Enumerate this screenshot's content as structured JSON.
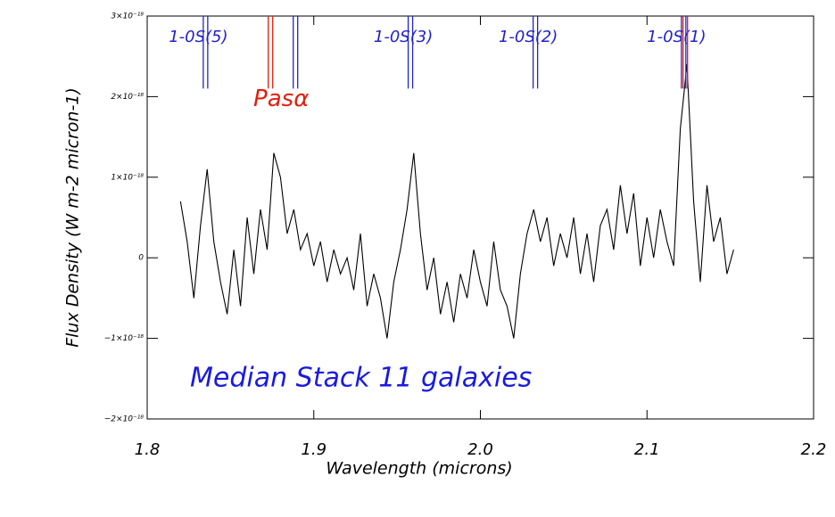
{
  "chart_data": {
    "type": "line",
    "x_label": "Wavelength (microns)",
    "y_label": "Flux Density (W m-2 micron-1)",
    "annotation": "Median Stack 11 galaxies",
    "xlim": [
      1.8,
      2.2
    ],
    "xticks": [
      1.8,
      1.9,
      {
        "value": 2.0,
        "label": "2.0"
      },
      2.1,
      2.2
    ],
    "ylim": [
      -2e-18,
      3e-18
    ],
    "yticks": [
      {
        "value": -2e-18,
        "label": "−2×10⁻¹⁸"
      },
      {
        "value": -1e-18,
        "label": "−1×10⁻¹⁸"
      },
      0,
      {
        "value": 1e-18,
        "label": "1×10⁻¹⁸"
      },
      {
        "value": 2e-18,
        "label": "2×10⁻¹⁸"
      },
      {
        "value": 3e-18,
        "label": "3×10⁻¹⁸"
      }
    ],
    "x": [
      1.82,
      1.824,
      1.828,
      1.832,
      1.836,
      1.84,
      1.844,
      1.848,
      1.852,
      1.856,
      1.86,
      1.864,
      1.868,
      1.872,
      1.876,
      1.88,
      1.884,
      1.888,
      1.892,
      1.896,
      1.9,
      1.904,
      1.908,
      1.912,
      1.916,
      1.92,
      1.924,
      1.928,
      1.932,
      1.936,
      1.94,
      1.944,
      1.948,
      1.952,
      1.956,
      1.96,
      1.964,
      1.968,
      1.972,
      1.976,
      1.98,
      1.984,
      1.988,
      1.992,
      1.996,
      2.0,
      2.004,
      2.008,
      2.012,
      2.016,
      2.02,
      2.024,
      2.028,
      2.032,
      2.036,
      2.04,
      2.044,
      2.048,
      2.052,
      2.056,
      2.06,
      2.064,
      2.068,
      2.072,
      2.076,
      2.08,
      2.084,
      2.088,
      2.092,
      2.096,
      2.1,
      2.104,
      2.108,
      2.112,
      2.116,
      2.12,
      2.124,
      2.128,
      2.132,
      2.136,
      2.14,
      2.144,
      2.148,
      2.152
    ],
    "series": [
      {
        "color": "#000000",
        "values": [
          7e-19,
          2e-19,
          -5e-19,
          4e-19,
          1.1e-18,
          2e-19,
          -3e-19,
          -7e-19,
          1e-19,
          -6e-19,
          5e-19,
          -2e-19,
          6e-19,
          1e-19,
          1.3e-18,
          1e-18,
          3e-19,
          6e-19,
          1e-19,
          3e-19,
          -1e-19,
          2e-19,
          -3e-19,
          1e-19,
          -2e-19,
          0,
          -4e-19,
          3e-19,
          -6e-19,
          -2e-19,
          -5e-19,
          -1e-18,
          -3e-19,
          1e-19,
          6e-19,
          1.3e-18,
          3e-19,
          -4e-19,
          0,
          -7e-19,
          -3e-19,
          -8e-19,
          -2e-19,
          -5e-19,
          1e-19,
          -3e-19,
          -6e-19,
          2e-19,
          -4e-19,
          -6e-19,
          -1e-18,
          -2e-19,
          3e-19,
          6e-19,
          2e-19,
          5e-19,
          -1e-19,
          3e-19,
          0,
          5e-19,
          -2e-19,
          3e-19,
          -3e-19,
          4e-19,
          6e-19,
          1e-19,
          9e-19,
          3e-19,
          8e-19,
          -1e-19,
          5e-19,
          0,
          6e-19,
          2e-19,
          -1e-19,
          1.6e-18,
          2.4e-18,
          7e-19,
          -3e-19,
          9e-19,
          2e-19,
          5e-19,
          -2e-19,
          1e-19
        ]
      }
    ],
    "line_bottom": 2.1e-18,
    "lines": [
      {
        "x": 1.835,
        "color": "#2222cc",
        "label": "1-0S(5)"
      },
      {
        "x": 1.874,
        "color": "#e02010",
        "label": "Pasα"
      },
      {
        "x": 1.889,
        "color": "#2222cc",
        "label": null
      },
      {
        "x": 1.958,
        "color": "#2222cc",
        "label": "1-0S(3)"
      },
      {
        "x": 2.033,
        "color": "#2222cc",
        "label": "1-0S(2)"
      },
      {
        "x": 2.122,
        "color": "#2222cc",
        "label": "1-0S(1)"
      },
      {
        "x": 2.123,
        "color": "#e02010",
        "label": null
      }
    ],
    "annotation_color": "#1a1ae0"
  }
}
